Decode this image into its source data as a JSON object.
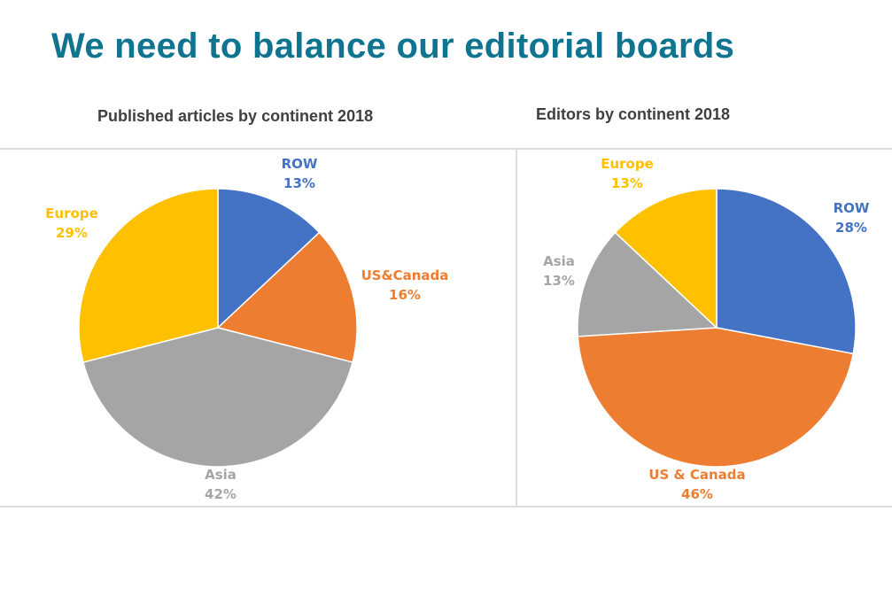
{
  "slide": {
    "title": "We need to balance our editorial boards",
    "title_color": "#0e7490"
  },
  "chart_data": [
    {
      "type": "pie",
      "title": "Published articles by continent 2018",
      "start_angle_deg": 0,
      "slices": [
        {
          "label": "ROW",
          "value": 13,
          "display": "13%",
          "color": "#4472c4"
        },
        {
          "label": "US&Canada",
          "value": 16,
          "display": "16%",
          "color": "#ed7d31"
        },
        {
          "label": "Asia",
          "value": 42,
          "display": "42%",
          "color": "#a5a5a5"
        },
        {
          "label": "Europe",
          "value": 29,
          "display": "29%",
          "color": "#ffc000"
        }
      ]
    },
    {
      "type": "pie",
      "title": "Editors by continent 2018",
      "start_angle_deg": 0,
      "slices": [
        {
          "label": "ROW",
          "value": 28,
          "display": "28%",
          "color": "#4472c4"
        },
        {
          "label": "US & Canada",
          "value": 46,
          "display": "46%",
          "color": "#ed7d31"
        },
        {
          "label": "Asia",
          "value": 13,
          "display": "13%",
          "color": "#a5a5a5"
        },
        {
          "label": "Europe",
          "value": 13,
          "display": "13%",
          "color": "#ffc000"
        }
      ]
    }
  ]
}
